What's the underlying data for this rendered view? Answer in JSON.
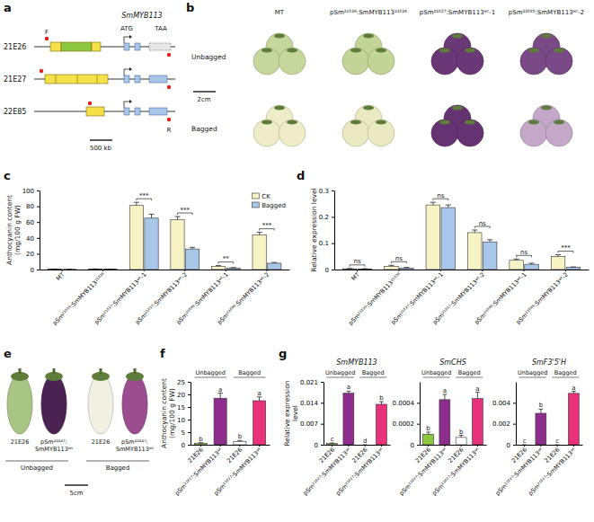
{
  "gene_structure": {
    "panel": "a",
    "gene": "SmMYB113",
    "alleles": [
      "21E26",
      "21E27",
      "22E85"
    ],
    "start_codon": "ATG",
    "stop_codon": "TAA",
    "primers": [
      "F",
      "R"
    ],
    "scale_bar": "500 kb"
  },
  "fruit_photos_b": {
    "panel": "b",
    "rows": [
      "Unbagged",
      "Bagged"
    ],
    "columns": [
      {
        "label": "MT",
        "colors": [
          "#c5d79c",
          "#eeecc9"
        ]
      },
      {
        "label": "pSm²¹ᴱ²⁶:SmMYB113²¹ᴱ²⁶",
        "colors": [
          "#c2d596",
          "#ebe9c2"
        ]
      },
      {
        "label": "pSm²¹ᴱ²⁷:SmMYB113ʷᵗ-1",
        "colors": [
          "#6a3777",
          "#663372"
        ]
      },
      {
        "label": "pSm²²ᴱ⁸⁵:SmMYB113ʷᵗ-2",
        "colors": [
          "#7a4a86",
          "#c4a8c8"
        ]
      }
    ],
    "scale_bar": "2cm"
  },
  "fruit_photos_e": {
    "panel": "e",
    "groups": [
      {
        "label": "Unbagged",
        "fruits": [
          {
            "label": "21E26",
            "color": "#a9c585"
          },
          {
            "label": "pSm²¹ᴱ²⁷:SmMYB113ʷᵗ",
            "color": "#4b2352"
          }
        ]
      },
      {
        "label": "Bagged",
        "fruits": [
          {
            "label": "21E26",
            "color": "#f2f0e2"
          },
          {
            "label": "pSm²¹ᴱ²⁷:SmMYB113ʷᵗ",
            "color": "#9b4d90"
          }
        ]
      }
    ],
    "scale_bar": "5cm"
  },
  "chart_data": [
    {
      "panel": "c",
      "type": "bar",
      "categories": [
        "MT",
        "pSm²¹ᴱ²⁶:SmMYB113²¹ᴱ²⁶",
        "pSm²¹ᴱ²⁷:SmMYB113ʷᵗ-1",
        "pSm²¹ᴱ²⁷:SmMYB113ʷᵗ-2",
        "pSm²²ᴱ⁸⁵:SmMYB113ʷᵗ-1",
        "pSm²²ᴱ⁸⁵:SmMYB113ʷᵗ-2"
      ],
      "series": [
        {
          "name": "CK",
          "color": "#f7f3c5",
          "values": [
            0.5,
            0.6,
            81,
            63,
            4,
            44
          ],
          "errors": [
            0.2,
            0.2,
            4,
            4,
            1,
            3
          ]
        },
        {
          "name": "Bagged",
          "color": "#a8c6e8",
          "values": [
            0.3,
            0.4,
            65,
            26,
            2,
            8
          ],
          "errors": [
            0.1,
            0.1,
            5,
            2,
            0.5,
            1
          ]
        }
      ],
      "significance": [
        null,
        null,
        "***",
        "***",
        "**",
        "***"
      ],
      "ylabel": "Anthocyanin content (mg/100 g FW)",
      "ylim": [
        0,
        100
      ],
      "yticks": [
        0,
        20,
        40,
        60,
        80,
        100
      ],
      "legend": "upper right"
    },
    {
      "panel": "d",
      "type": "bar",
      "categories": [
        "MT",
        "pSm²¹ᴱ²⁶:SmMYB113²¹ᴱ²⁶",
        "pSm²¹ᴱ²⁷:SmMYB113ʷᵗ-1",
        "pSm²¹ᴱ²⁷:SmMYB113ʷᵗ-2",
        "pSm²²ᴱ⁸⁵:SmMYB113ʷᵗ-1",
        "pSm²²ᴱ⁸⁵:SmMYB113ʷᵗ-2"
      ],
      "series": [
        {
          "name": "CK",
          "color": "#f7f3c5",
          "values": [
            0.003,
            0.012,
            0.245,
            0.14,
            0.035,
            0.05
          ],
          "errors": [
            0.001,
            0.004,
            0.01,
            0.01,
            0.005,
            0.006
          ]
        },
        {
          "name": "Bagged",
          "color": "#a8c6e8",
          "values": [
            0.002,
            0.006,
            0.235,
            0.105,
            0.02,
            0.008
          ],
          "errors": [
            0.001,
            0.002,
            0.01,
            0.008,
            0.004,
            0.002
          ]
        }
      ],
      "significance": [
        "ns",
        "ns",
        "ns",
        "ns",
        "ns",
        "***"
      ],
      "ylabel": "Relative expression level",
      "ylim": [
        0,
        0.3
      ],
      "yticks": [
        0,
        0.1,
        0.2,
        0.3
      ]
    },
    {
      "panel": "f",
      "type": "bar",
      "categories": [
        "21E26",
        "pSm²¹ᴱ²⁷:SmMYB113ʷᵗ",
        "21E26",
        "pSm²¹ᴱ²⁷:SmMYB113ʷᵗ"
      ],
      "values": [
        0.5,
        18.5,
        1.2,
        17.5
      ],
      "errors": [
        0.3,
        2,
        0.5,
        1.5
      ],
      "colors": [
        "#8dc63f",
        "#8e2e8c",
        "#ffffff",
        "#e8327c"
      ],
      "letters": [
        "b",
        "a",
        "b",
        "a"
      ],
      "groups": [
        "Unbagged",
        "Bagged"
      ],
      "ylabel": "Anthocyanin content (mg/100 g FW)",
      "ylim": [
        0,
        25
      ],
      "yticks": [
        0,
        5,
        10,
        15,
        20,
        25
      ]
    },
    {
      "panel": "g",
      "type": "bar",
      "title": "SmMYB113",
      "categories": [
        "21E26",
        "pSm²¹ᴱ²⁷:SmMYB113ʷᵗ",
        "21E26",
        "pSm²¹ᴱ²⁷:SmMYB113ʷᵗ"
      ],
      "values": [
        0.0004,
        0.0172,
        0,
        0.0135
      ],
      "errors": [
        0.0002,
        0.0007,
        0,
        0.0009
      ],
      "colors": [
        "#8dc63f",
        "#8e2e8c",
        "#ffffff",
        "#e8327c"
      ],
      "letters": [
        "c",
        "a",
        "d",
        "b"
      ],
      "groups": [
        "Unbagged",
        "Bagged"
      ],
      "ylabel": "Relative expression level",
      "ylim": [
        0,
        0.021
      ],
      "yticks": [
        0,
        0.007,
        0.014,
        0.021
      ]
    },
    {
      "type": "bar",
      "title": "SmCHS",
      "categories": [
        "21E26",
        "pSm²¹ᴱ²⁷:SmMYB113ʷᵗ",
        "21E26",
        "pSm²¹ᴱ²⁷:SmMYB113ʷᵗ"
      ],
      "values": [
        0.0001,
        0.00043,
        7e-05,
        0.00044
      ],
      "errors": [
        2e-05,
        5e-05,
        2e-05,
        6e-05
      ],
      "colors": [
        "#8dc63f",
        "#8e2e8c",
        "#ffffff",
        "#e8327c"
      ],
      "letters": [
        "b",
        "a",
        "b",
        "a"
      ],
      "groups": [
        "Unbagged",
        "Bagged"
      ],
      "ylim": [
        0,
        0.0006
      ],
      "yticks": [
        0,
        0.0002,
        0.0004
      ]
    },
    {
      "type": "bar",
      "title": "SmF3'5'H",
      "categories": [
        "21E26",
        "pSm²¹ᴱ²⁷:SmMYB113ʷᵗ",
        "21E26",
        "pSm²¹ᴱ²⁷:SmMYB113ʷᵗ"
      ],
      "values": [
        0,
        0.003,
        0,
        0.0049
      ],
      "errors": [
        0,
        0.0004,
        0,
        0.0002
      ],
      "colors": [
        "#8dc63f",
        "#8e2e8c",
        "#ffffff",
        "#e8327c"
      ],
      "letters": [
        "c",
        "b",
        "c",
        "a"
      ],
      "groups": [
        "Unbagged",
        "Bagged"
      ],
      "ylim": [
        0,
        0.006
      ],
      "yticks": [
        0,
        0.002,
        0.004
      ]
    }
  ]
}
